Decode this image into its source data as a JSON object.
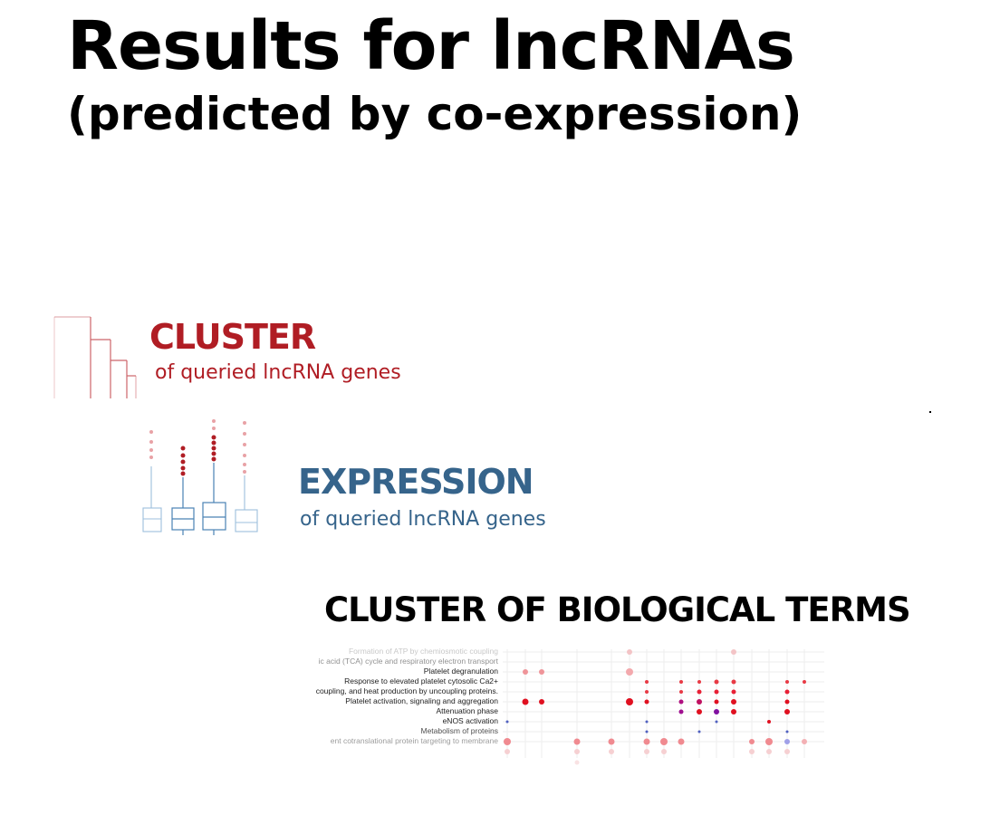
{
  "title": "Results for lncRNAs",
  "subtitle": "(predicted by co-expression)",
  "sections": {
    "cluster": {
      "heading": "CLUSTER",
      "subheading": "of queried lncRNA genes",
      "color": "#b01d24"
    },
    "expression": {
      "heading": "EXPRESSION",
      "subheading": "of queried lncRNA genes",
      "color": "#36648b"
    },
    "bio_terms": {
      "heading": "CLUSTER OF BIOLOGICAL TERMS",
      "color": "#000000"
    }
  },
  "dot_plot_terms": [
    "Formation of ATP by chemiosmotic coupling",
    "ic acid (TCA) cycle and respiratory electron transport",
    "Platelet degranulation",
    "Response to elevated platelet cytosolic Ca2+",
    "coupling, and heat production by uncoupling proteins.",
    "Platelet activation, signaling and aggregation",
    "Attenuation phase",
    "eNOS activation",
    "Metabolism of proteins",
    "ent cotranslational protein targeting to membrane"
  ]
}
